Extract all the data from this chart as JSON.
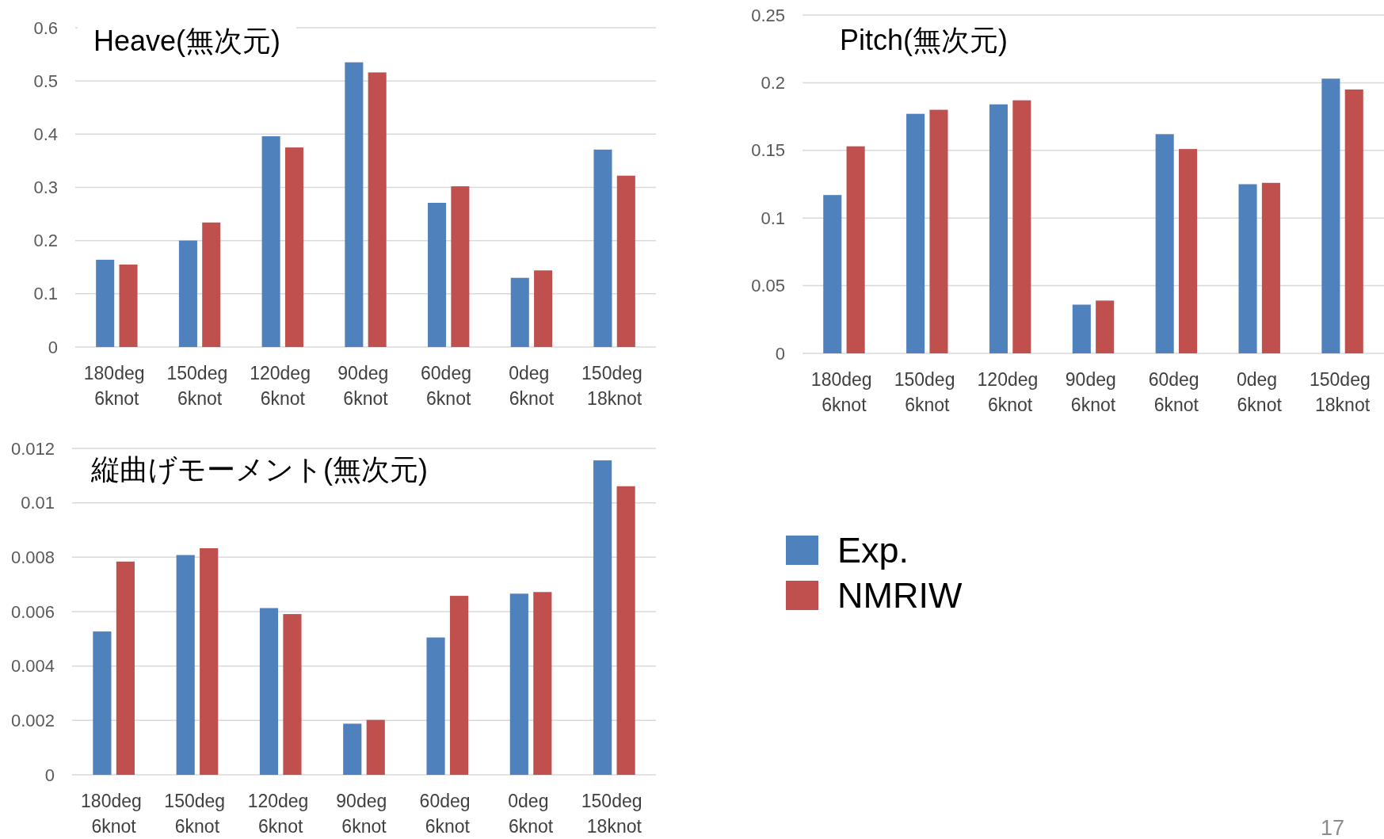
{
  "chart_data": [
    {
      "type": "bar",
      "title": "Heave(無次元)",
      "categories": [
        "180deg 6knot",
        "150deg 6knot",
        "120deg 6knot",
        "90deg 6knot",
        "60deg 6knot",
        "0deg 6knot",
        "150deg 18knot"
      ],
      "series": [
        {
          "color": "#4f81bd",
          "values": [
            0.164,
            0.2,
            0.396,
            0.535,
            0.271,
            0.13,
            0.371
          ]
        },
        {
          "color": "#c0504d",
          "values": [
            0.155,
            0.234,
            0.375,
            0.516,
            0.302,
            0.144,
            0.322
          ]
        }
      ],
      "ylim": [
        0,
        0.6
      ],
      "yticks": [
        0,
        0.1,
        0.2,
        0.3,
        0.4,
        0.5,
        0.6
      ],
      "grid": "y"
    },
    {
      "type": "bar",
      "title": "Pitch(無次元)",
      "categories": [
        "180deg 6knot",
        "150deg 6knot",
        "120deg 6knot",
        "90deg 6knot",
        "60deg 6knot",
        "0deg 6knot",
        "150deg 18knot"
      ],
      "series": [
        {
          "color": "#4f81bd",
          "values": [
            0.117,
            0.177,
            0.184,
            0.036,
            0.162,
            0.125,
            0.203
          ]
        },
        {
          "color": "#c0504d",
          "values": [
            0.153,
            0.18,
            0.187,
            0.039,
            0.151,
            0.126,
            0.195
          ]
        }
      ],
      "ylim": [
        0,
        0.25
      ],
      "yticks": [
        0,
        0.05,
        0.1,
        0.15,
        0.2,
        0.25
      ],
      "grid": "y"
    },
    {
      "type": "bar",
      "title": "縦曲げモーメント(無次元)",
      "categories": [
        "180deg 6knot",
        "150deg 6knot",
        "120deg 6knot",
        "90deg 6knot",
        "60deg 6knot",
        "0deg 6knot",
        "150deg 18knot"
      ],
      "series": [
        {
          "name": "Exp.",
          "color": "#4f81bd",
          "values": [
            0.00527,
            0.00808,
            0.00613,
            0.00188,
            0.00505,
            0.00666,
            0.01156
          ]
        },
        {
          "name": "NMRIW",
          "color": "#c0504d",
          "values": [
            0.00784,
            0.00833,
            0.00591,
            0.00202,
            0.00658,
            0.00672,
            0.01061
          ]
        }
      ],
      "ylim": [
        0,
        0.012
      ],
      "yticks": [
        0,
        0.002,
        0.004,
        0.006,
        0.008,
        0.01,
        0.012
      ],
      "grid": "y",
      "legend": "right",
      "annotations": [
        "17"
      ]
    }
  ]
}
